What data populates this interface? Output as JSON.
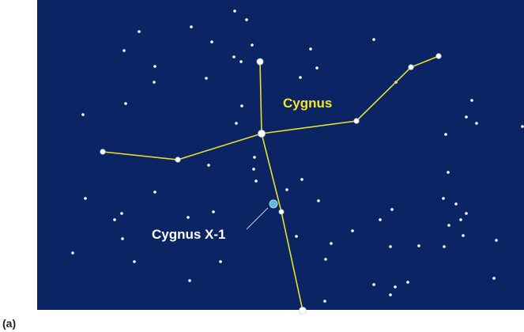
{
  "labels": {
    "constellation": "Cygnus",
    "object": "Cygnus X-1",
    "panel": "(a)"
  }
}
